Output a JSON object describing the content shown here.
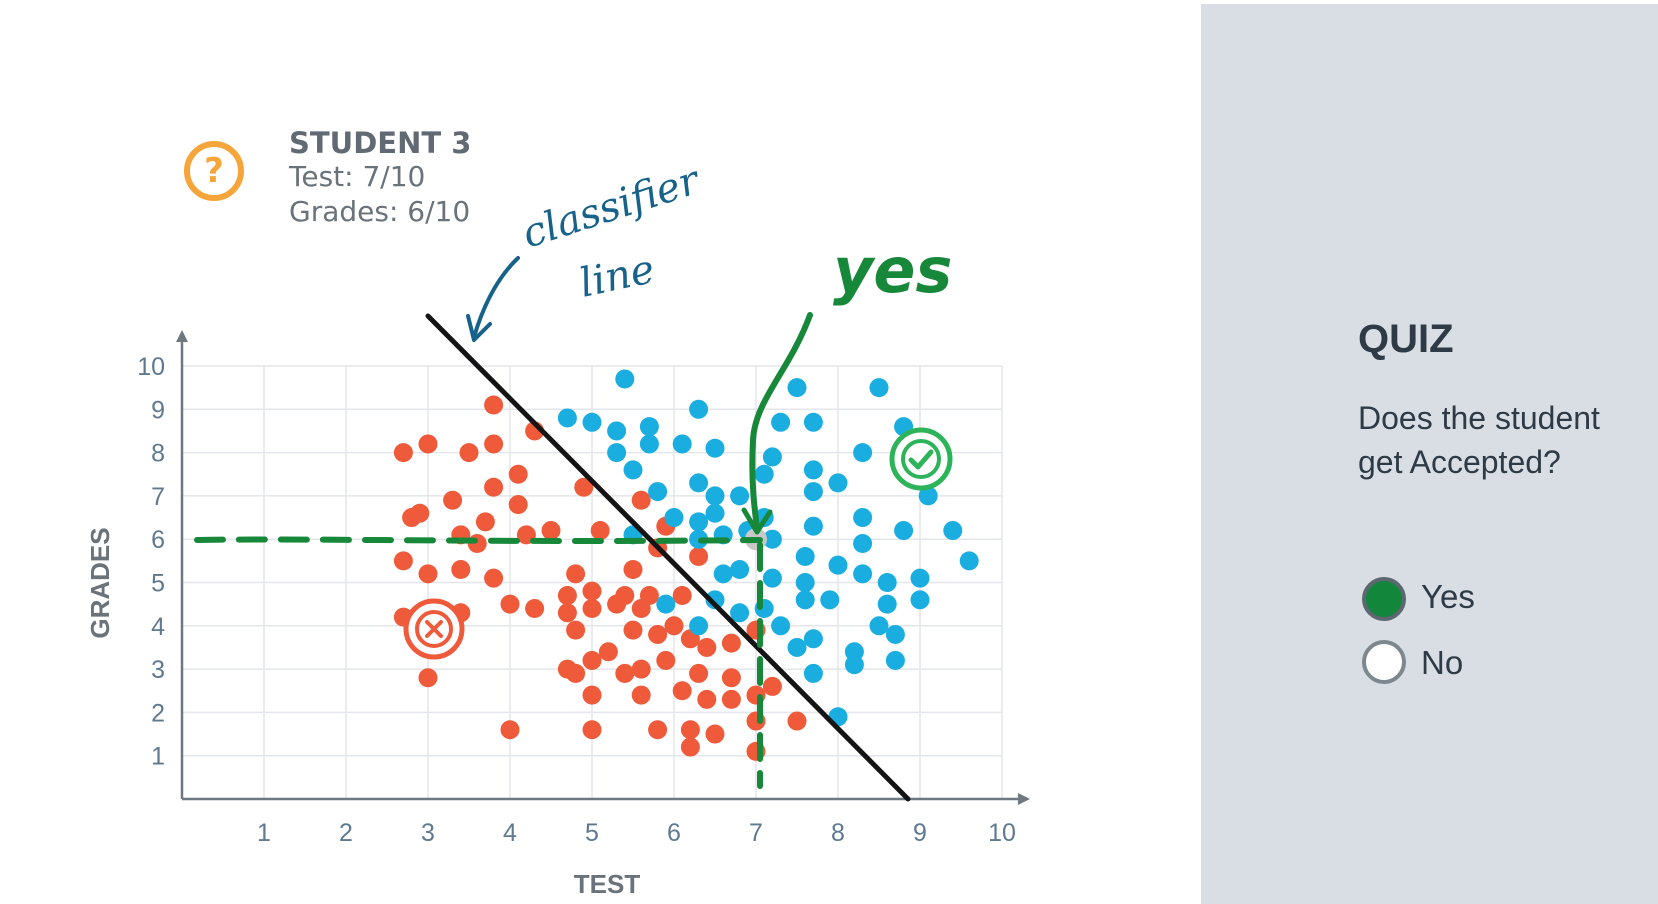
{
  "student": {
    "title": "STUDENT 3",
    "test_line": "Test: 7/10",
    "grades_line": "Grades: 6/10",
    "icon": "question-circle-icon"
  },
  "annotations": {
    "classifier_text_1": "classifier",
    "classifier_text_2": "line",
    "yes_text": "yes"
  },
  "quiz": {
    "title": "QUIZ",
    "question": "Does the student get Accepted?",
    "options": [
      {
        "label": "Yes",
        "selected": true
      },
      {
        "label": "No",
        "selected": false
      }
    ]
  },
  "colors": {
    "rejected": "#ee5a3a",
    "accepted": "#1aaee0",
    "student_point": "#c8c8c8",
    "annotation_green": "#17873a",
    "annotation_blue": "#17628a",
    "accent_orange": "#f5a53a",
    "check_green": "#2db45a"
  },
  "chart_data": {
    "type": "scatter",
    "xlabel": "TEST",
    "ylabel": "GRADES",
    "xlim": [
      0,
      10
    ],
    "ylim": [
      0,
      10
    ],
    "xticks": [
      1,
      2,
      3,
      4,
      5,
      6,
      7,
      8,
      9,
      10
    ],
    "yticks": [
      1,
      2,
      3,
      4,
      5,
      6,
      7,
      8,
      9,
      10
    ],
    "grid": true,
    "series": [
      {
        "color": "#ee5a3a",
        "points": [
          [
            2.7,
            8.0
          ],
          [
            3.0,
            8.2
          ],
          [
            3.5,
            8.0
          ],
          [
            3.8,
            9.1
          ],
          [
            3.8,
            8.2
          ],
          [
            4.3,
            8.5
          ],
          [
            4.1,
            7.5
          ],
          [
            3.8,
            7.2
          ],
          [
            4.1,
            6.8
          ],
          [
            3.3,
            6.9
          ],
          [
            2.9,
            6.6
          ],
          [
            2.8,
            6.5
          ],
          [
            3.4,
            6.1
          ],
          [
            3.6,
            5.9
          ],
          [
            3.7,
            6.4
          ],
          [
            4.2,
            6.1
          ],
          [
            4.5,
            6.2
          ],
          [
            4.9,
            7.2
          ],
          [
            2.7,
            5.5
          ],
          [
            3.0,
            5.2
          ],
          [
            3.4,
            5.3
          ],
          [
            3.8,
            5.1
          ],
          [
            2.7,
            4.2
          ],
          [
            3.4,
            4.3
          ],
          [
            3.0,
            2.8
          ],
          [
            4.0,
            4.5
          ],
          [
            4.3,
            4.4
          ],
          [
            4.7,
            4.7
          ],
          [
            4.8,
            5.2
          ],
          [
            5.0,
            4.8
          ],
          [
            4.7,
            4.3
          ],
          [
            4.8,
            3.9
          ],
          [
            5.0,
            4.4
          ],
          [
            5.3,
            4.5
          ],
          [
            5.1,
            6.2
          ],
          [
            5.6,
            6.9
          ],
          [
            5.9,
            6.3
          ],
          [
            5.8,
            5.8
          ],
          [
            5.5,
            5.3
          ],
          [
            5.4,
            4.7
          ],
          [
            5.6,
            4.4
          ],
          [
            5.7,
            4.7
          ],
          [
            6.1,
            4.7
          ],
          [
            5.8,
            3.8
          ],
          [
            5.5,
            3.9
          ],
          [
            5.2,
            3.4
          ],
          [
            5.0,
            3.2
          ],
          [
            4.7,
            3.0
          ],
          [
            4.8,
            2.9
          ],
          [
            5.0,
            2.4
          ],
          [
            5.4,
            2.9
          ],
          [
            5.6,
            3.0
          ],
          [
            5.6,
            2.4
          ],
          [
            5.9,
            3.2
          ],
          [
            6.2,
            3.7
          ],
          [
            6.4,
            3.5
          ],
          [
            6.3,
            2.9
          ],
          [
            6.4,
            2.3
          ],
          [
            6.1,
            2.5
          ],
          [
            6.7,
            2.3
          ],
          [
            6.5,
            1.5
          ],
          [
            6.2,
            1.6
          ],
          [
            6.2,
            1.2
          ],
          [
            5.8,
            1.6
          ],
          [
            5.0,
            1.6
          ],
          [
            4.0,
            1.6
          ],
          [
            6.3,
            5.6
          ],
          [
            6.7,
            3.6
          ],
          [
            7.0,
            3.9
          ],
          [
            7.2,
            2.6
          ],
          [
            7.5,
            1.8
          ],
          [
            7.0,
            1.1
          ],
          [
            7.0,
            1.8
          ],
          [
            7.0,
            2.4
          ],
          [
            6.7,
            2.8
          ],
          [
            6.0,
            4.0
          ]
        ]
      },
      {
        "color": "#1aaee0",
        "points": [
          [
            5.4,
            9.7
          ],
          [
            6.3,
            9.0
          ],
          [
            7.5,
            9.5
          ],
          [
            8.5,
            9.5
          ],
          [
            8.8,
            8.6
          ],
          [
            4.7,
            8.8
          ],
          [
            5.0,
            8.7
          ],
          [
            5.3,
            8.5
          ],
          [
            5.7,
            8.6
          ],
          [
            5.3,
            8.0
          ],
          [
            5.7,
            8.2
          ],
          [
            6.1,
            8.2
          ],
          [
            6.5,
            8.1
          ],
          [
            5.5,
            7.6
          ],
          [
            5.8,
            7.1
          ],
          [
            6.3,
            7.3
          ],
          [
            6.5,
            7.0
          ],
          [
            6.8,
            7.0
          ],
          [
            7.1,
            7.5
          ],
          [
            7.2,
            7.9
          ],
          [
            7.3,
            8.7
          ],
          [
            7.7,
            8.7
          ],
          [
            7.7,
            7.6
          ],
          [
            7.7,
            7.1
          ],
          [
            8.0,
            7.3
          ],
          [
            8.3,
            8.0
          ],
          [
            9.1,
            7.0
          ],
          [
            6.0,
            6.5
          ],
          [
            6.3,
            6.4
          ],
          [
            6.5,
            6.6
          ],
          [
            6.3,
            6.0
          ],
          [
            6.6,
            6.1
          ],
          [
            6.9,
            6.2
          ],
          [
            7.1,
            6.5
          ],
          [
            7.2,
            6.0
          ],
          [
            7.7,
            6.3
          ],
          [
            8.3,
            6.5
          ],
          [
            8.3,
            5.9
          ],
          [
            8.8,
            6.2
          ],
          [
            9.4,
            6.2
          ],
          [
            9.6,
            5.5
          ],
          [
            9.0,
            5.1
          ],
          [
            9.0,
            4.6
          ],
          [
            8.6,
            5.0
          ],
          [
            8.6,
            4.5
          ],
          [
            8.3,
            5.2
          ],
          [
            8.0,
            5.4
          ],
          [
            7.6,
            5.6
          ],
          [
            7.6,
            5.0
          ],
          [
            7.2,
            5.1
          ],
          [
            6.8,
            5.3
          ],
          [
            6.6,
            5.2
          ],
          [
            6.5,
            4.6
          ],
          [
            6.8,
            4.3
          ],
          [
            7.3,
            4.0
          ],
          [
            7.6,
            4.6
          ],
          [
            7.9,
            4.6
          ],
          [
            7.5,
            3.5
          ],
          [
            7.7,
            3.7
          ],
          [
            8.2,
            3.4
          ],
          [
            8.2,
            3.1
          ],
          [
            8.5,
            4.0
          ],
          [
            8.7,
            3.8
          ],
          [
            8.7,
            3.2
          ],
          [
            7.7,
            2.9
          ],
          [
            8.0,
            1.9
          ],
          [
            6.3,
            4.0
          ],
          [
            5.9,
            4.5
          ],
          [
            5.5,
            6.1
          ],
          [
            7.1,
            4.4
          ]
        ]
      },
      {
        "color": "#c8c8c8",
        "points": [
          [
            7,
            6
          ]
        ]
      }
    ]
  }
}
